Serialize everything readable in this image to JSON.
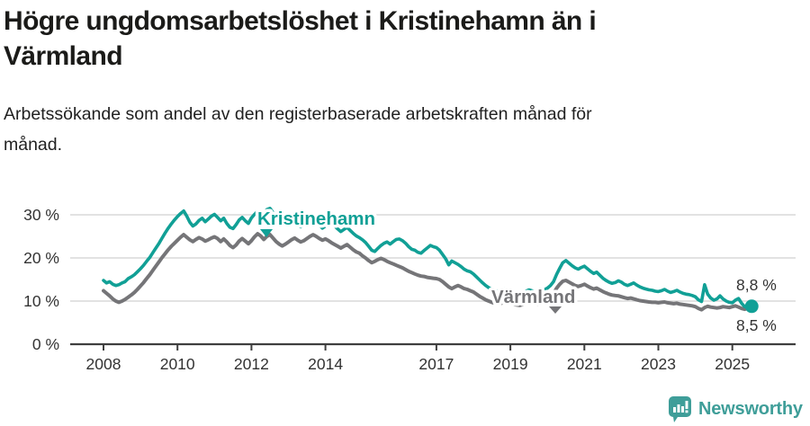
{
  "header": {
    "title_lines": [
      "Högre ungdomsarbetslöshet i Kristinehamn än i",
      "Värmland"
    ],
    "subtitle_lines": [
      "Arbetssökande som andel av den registerbaserade arbetskraften månad för",
      "månad."
    ]
  },
  "chart_data": {
    "type": "line",
    "unit": "percent",
    "frequency": "monthly",
    "period_start": "2008-01",
    "period_end": "2025-07",
    "x_tick_years": [
      2008,
      2010,
      2012,
      2014,
      2017,
      2019,
      2021,
      2023,
      2025
    ],
    "x_tick_labels": [
      "2008",
      "2010",
      "2012",
      "2014",
      "2017",
      "2019",
      "2021",
      "2023",
      "2025"
    ],
    "y_ticks": [
      0,
      10,
      20,
      30
    ],
    "y_tick_labels": [
      "0 %",
      "10 %",
      "20 %",
      "30 %"
    ],
    "ylim": [
      0,
      33
    ],
    "grid": "horizontal",
    "legend_position": "inline-labels",
    "series": [
      {
        "name": "Kristinehamn",
        "color": "#11a096",
        "values": [
          14.8,
          14.2,
          14.5,
          13.9,
          13.6,
          13.8,
          14.2,
          14.5,
          15.2,
          15.6,
          16.1,
          16.8,
          17.5,
          18.3,
          19.2,
          20.1,
          21.2,
          22.3,
          23.4,
          24.6,
          25.8,
          26.9,
          27.9,
          28.8,
          29.6,
          30.3,
          30.9,
          29.7,
          28.3,
          27.4,
          27.9,
          28.7,
          29.2,
          28.4,
          29.0,
          29.7,
          30.1,
          29.4,
          28.6,
          29.2,
          28.0,
          27.1,
          26.8,
          27.7,
          28.8,
          29.4,
          28.6,
          28.0,
          29.3,
          30.1,
          30.8,
          30.3,
          29.7,
          31.2,
          31.5,
          30.5,
          29.6,
          28.9,
          28.4,
          28.9,
          29.6,
          29.0,
          28.3,
          27.7,
          27.2,
          27.9,
          28.4,
          27.7,
          27.9,
          28.3,
          27.6,
          26.9,
          27.4,
          27.9,
          28.2,
          27.4,
          26.7,
          26.1,
          26.6,
          27.1,
          26.4,
          25.7,
          25.1,
          24.7,
          24.2,
          23.6,
          22.7,
          21.8,
          21.5,
          22.2,
          22.9,
          23.4,
          23.7,
          23.2,
          23.8,
          24.3,
          24.4,
          24.0,
          23.4,
          22.6,
          22.0,
          21.8,
          21.3,
          21.1,
          21.7,
          22.3,
          22.9,
          22.6,
          22.4,
          21.8,
          20.8,
          19.8,
          18.4,
          19.3,
          18.9,
          18.5,
          18.0,
          17.4,
          17.0,
          16.8,
          16.3,
          15.6,
          14.9,
          14.2,
          13.6,
          13.1,
          12.8,
          12.5,
          12.3,
          12.5,
          12.8,
          12.6,
          12.4,
          12.2,
          12.0,
          11.8,
          12.0,
          12.3,
          12.6,
          12.4,
          12.1,
          11.9,
          12.2,
          12.6,
          13.0,
          13.6,
          14.5,
          16.2,
          17.6,
          18.9,
          19.4,
          18.8,
          18.2,
          17.7,
          17.4,
          17.8,
          18.1,
          17.5,
          16.9,
          16.4,
          16.7,
          16.0,
          15.3,
          14.8,
          14.4,
          14.1,
          14.3,
          14.7,
          14.4,
          13.9,
          13.6,
          13.9,
          14.2,
          13.7,
          13.3,
          13.0,
          12.8,
          12.6,
          12.5,
          12.3,
          12.2,
          12.4,
          12.7,
          12.3,
          12.0,
          12.2,
          12.5,
          12.1,
          11.8,
          11.6,
          11.5,
          11.3,
          11.0,
          10.3,
          9.9,
          13.8,
          11.6,
          10.7,
          10.2,
          10.5,
          11.2,
          10.5,
          10.0,
          9.7,
          9.6,
          10.2,
          10.6,
          9.5,
          8.7,
          8.5,
          8.8
        ]
      },
      {
        "name": "Värmland",
        "color": "#757578",
        "values": [
          12.4,
          11.8,
          11.2,
          10.5,
          10.0,
          9.7,
          10.0,
          10.4,
          10.9,
          11.4,
          12.0,
          12.7,
          13.5,
          14.3,
          15.2,
          16.1,
          17.1,
          18.1,
          19.1,
          20.1,
          21.0,
          21.9,
          22.7,
          23.4,
          24.1,
          24.8,
          25.4,
          24.8,
          24.2,
          23.8,
          24.3,
          24.7,
          24.4,
          23.9,
          24.2,
          24.6,
          24.9,
          24.5,
          23.8,
          24.4,
          23.7,
          22.9,
          22.4,
          23.0,
          23.9,
          24.5,
          23.9,
          23.3,
          24.0,
          24.9,
          25.6,
          25.1,
          24.3,
          25.0,
          25.4,
          24.6,
          23.8,
          23.2,
          22.8,
          23.2,
          23.7,
          24.2,
          24.6,
          24.1,
          23.7,
          24.0,
          24.5,
          25.0,
          25.4,
          25.0,
          24.5,
          24.1,
          24.4,
          24.0,
          23.5,
          23.1,
          22.7,
          22.3,
          22.7,
          23.1,
          22.5,
          21.9,
          21.4,
          21.1,
          20.5,
          20.0,
          19.4,
          18.9,
          19.2,
          19.6,
          19.9,
          19.6,
          19.2,
          18.9,
          18.6,
          18.3,
          18.0,
          17.7,
          17.3,
          16.9,
          16.6,
          16.3,
          16.0,
          15.8,
          15.7,
          15.5,
          15.4,
          15.3,
          15.2,
          15.0,
          14.5,
          13.9,
          13.3,
          12.9,
          13.3,
          13.6,
          13.3,
          12.9,
          12.7,
          12.4,
          12.1,
          11.6,
          11.1,
          10.7,
          10.3,
          10.0,
          9.7,
          9.5,
          9.3,
          9.5,
          9.7,
          9.6,
          9.5,
          9.3,
          9.1,
          9.0,
          9.2,
          9.4,
          9.7,
          9.6,
          9.4,
          9.3,
          9.5,
          9.9,
          10.4,
          11.0,
          11.8,
          13.0,
          13.9,
          14.6,
          14.8,
          14.4,
          14.0,
          13.6,
          13.4,
          13.6,
          13.9,
          13.5,
          13.1,
          12.8,
          13.0,
          12.6,
          12.2,
          11.9,
          11.6,
          11.4,
          11.3,
          11.2,
          11.0,
          10.8,
          10.6,
          10.7,
          10.5,
          10.3,
          10.1,
          10.0,
          9.9,
          9.8,
          9.7,
          9.7,
          9.6,
          9.7,
          9.8,
          9.6,
          9.5,
          9.4,
          9.5,
          9.3,
          9.2,
          9.1,
          9.0,
          8.9,
          8.7,
          8.3,
          8.0,
          8.5,
          8.8,
          8.6,
          8.5,
          8.4,
          8.5,
          8.7,
          8.6,
          8.5,
          8.7,
          8.9,
          8.6,
          8.3,
          8.1,
          8.3,
          8.5
        ]
      }
    ],
    "series_inline_labels": [
      {
        "series": "Kristinehamn",
        "text": "Kristinehamn",
        "arrow": "down"
      },
      {
        "series": "Värmland",
        "text": "Värmland",
        "arrow": "down"
      }
    ],
    "end_labels": {
      "top": "8,8 %",
      "bottom": "8,5 %"
    },
    "end_marker": {
      "series": "Kristinehamn",
      "value": 8.8
    }
  },
  "footer": {
    "brand": "Newsworthy",
    "logo_icon": "bar-chart-speech-bubble-icon",
    "brand_color": "#3f9e99"
  },
  "colors": {
    "grid": "#d8d8d8",
    "axis": "#3f3f3f",
    "tick_text": "#333333",
    "value_label": "#333333",
    "title_text": "#1b1b19"
  }
}
